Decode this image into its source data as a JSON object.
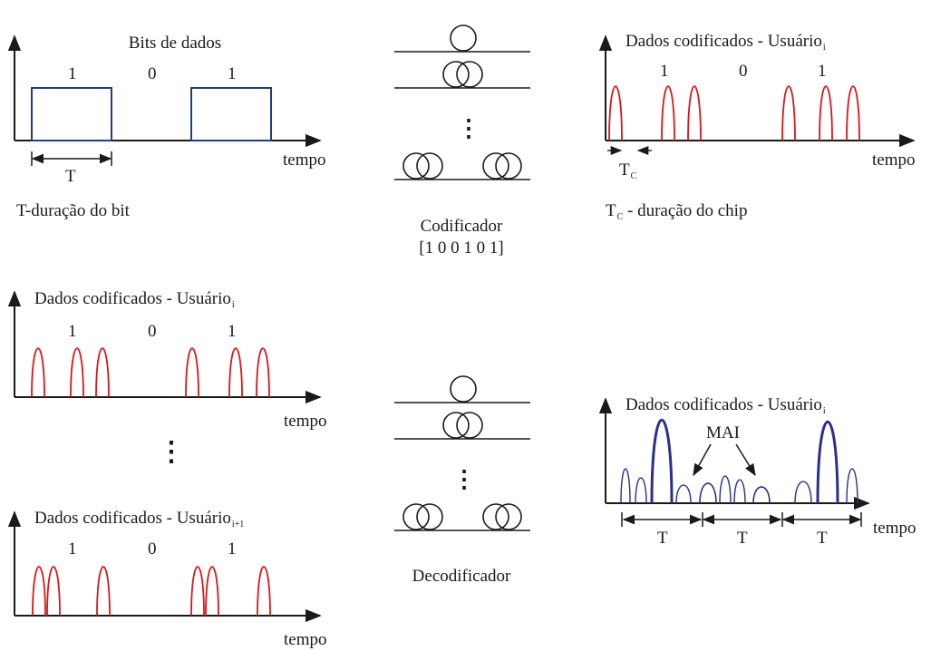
{
  "panel_top_left": {
    "title": "Bits de dados",
    "bits": [
      "1",
      "0",
      "1"
    ],
    "axis_label": "tempo",
    "period_label": "T",
    "caption": "T-duração do bit"
  },
  "encoder": {
    "label": "Codificador",
    "code": "[1 0 0 1 0 1]"
  },
  "panel_top_right": {
    "title": "Dados codificados - Usuário",
    "title_sub": "i",
    "bits": [
      "1",
      "0",
      "1"
    ],
    "axis_label": "tempo",
    "chip_label": "T",
    "chip_sub": "C",
    "caption_main": "T",
    "caption_sub": "C",
    "caption_rest": " - duração do chip"
  },
  "panel_mid_left": {
    "title": "Dados codificados - Usuário",
    "title_sub": "i",
    "bits": [
      "1",
      "0",
      "1"
    ],
    "axis_label": "tempo"
  },
  "ellipsis": "⋮",
  "panel_bottom_left": {
    "title": "Dados codificados - Usuário",
    "title_sub": "i+1",
    "bits": [
      "1",
      "0",
      "1"
    ],
    "axis_label": "tempo"
  },
  "decoder": {
    "label": "Decodificador"
  },
  "panel_bottom_right": {
    "title": "Dados codificados - Usuário",
    "title_sub": "i",
    "mai_label": "MAI",
    "axis_label": "tempo",
    "period_labels": [
      "T",
      "T",
      "T"
    ]
  },
  "colors": {
    "rect_pulse": "#1f3d8a",
    "chip_pulse": "#d9161b",
    "decoded_pulse": "#2a2f8c",
    "box_fill": "#cfe6d3",
    "ink": "#1a1a1a"
  }
}
